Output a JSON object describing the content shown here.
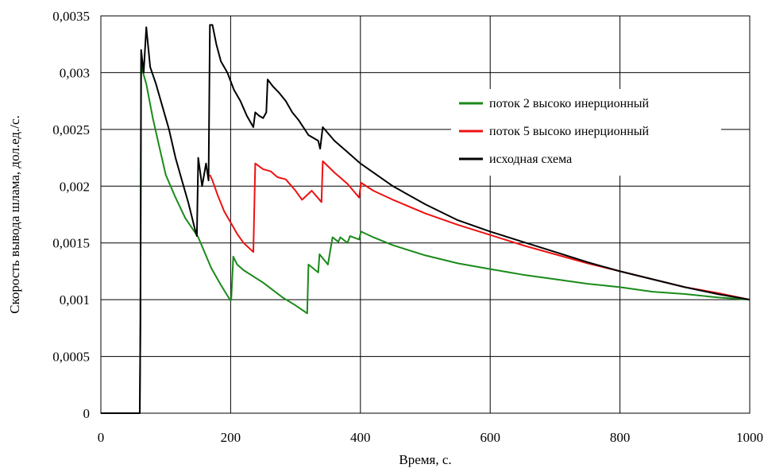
{
  "chart_data": {
    "type": "line",
    "title": "",
    "xlabel": "Время, с.",
    "ylabel": "Скорость вывода шлама, дол.ед./с.",
    "xlim": [
      0,
      1000
    ],
    "ylim": [
      0,
      0.0035
    ],
    "x_ticks": [
      0,
      200,
      400,
      600,
      800,
      1000
    ],
    "x_tick_labels": [
      "0",
      "200",
      "400",
      "600",
      "800",
      "1000"
    ],
    "y_ticks": [
      0,
      0.0005,
      0.001,
      0.0015,
      0.002,
      0.0025,
      0.003,
      0.0035
    ],
    "y_tick_labels": [
      "0",
      "0,0005",
      "0,001",
      "0,0015",
      "0,002",
      "0,0025",
      "0,003",
      "0,0035"
    ],
    "grid": true,
    "legend_position": "top-right",
    "series": [
      {
        "name": "поток 2 высоко инерционный",
        "color": "#1a8a1a",
        "points": [
          [
            0,
            0
          ],
          [
            60,
            0
          ],
          [
            61,
            0.0008
          ],
          [
            62,
            0.0031
          ],
          [
            65,
            0.003
          ],
          [
            70,
            0.0029
          ],
          [
            80,
            0.0026
          ],
          [
            90,
            0.00235
          ],
          [
            100,
            0.0021
          ],
          [
            115,
            0.0019
          ],
          [
            130,
            0.00172
          ],
          [
            150,
            0.00155
          ],
          [
            170,
            0.00128
          ],
          [
            185,
            0.00113
          ],
          [
            200,
            0.00099
          ],
          [
            201,
            0.00101
          ],
          [
            204,
            0.00138
          ],
          [
            210,
            0.00131
          ],
          [
            220,
            0.00126
          ],
          [
            250,
            0.00115
          ],
          [
            280,
            0.00102
          ],
          [
            300,
            0.00095
          ],
          [
            318,
            0.00088
          ],
          [
            320,
            0.00131
          ],
          [
            335,
            0.00124
          ],
          [
            337,
            0.0014
          ],
          [
            350,
            0.00131
          ],
          [
            357,
            0.00155
          ],
          [
            366,
            0.00151
          ],
          [
            369,
            0.00155
          ],
          [
            380,
            0.0015
          ],
          [
            384,
            0.00156
          ],
          [
            398,
            0.00153
          ],
          [
            401,
            0.0016
          ],
          [
            420,
            0.00155
          ],
          [
            450,
            0.00148
          ],
          [
            500,
            0.00139
          ],
          [
            550,
            0.00132
          ],
          [
            600,
            0.00127
          ],
          [
            650,
            0.00122
          ],
          [
            700,
            0.00118
          ],
          [
            750,
            0.00114
          ],
          [
            800,
            0.00111
          ],
          [
            850,
            0.00107
          ],
          [
            900,
            0.00105
          ],
          [
            950,
            0.00102
          ],
          [
            1000,
            0.001
          ]
        ]
      },
      {
        "name": "поток 5 высоко инерционный",
        "color": "#ee1111",
        "points": [
          [
            168,
            0.0021
          ],
          [
            172,
            0.00205
          ],
          [
            180,
            0.00192
          ],
          [
            190,
            0.00178
          ],
          [
            200,
            0.00168
          ],
          [
            210,
            0.00158
          ],
          [
            220,
            0.0015
          ],
          [
            235,
            0.00142
          ],
          [
            238,
            0.0022
          ],
          [
            250,
            0.00215
          ],
          [
            262,
            0.00213
          ],
          [
            272,
            0.00208
          ],
          [
            285,
            0.00206
          ],
          [
            300,
            0.00196
          ],
          [
            310,
            0.00188
          ],
          [
            325,
            0.00196
          ],
          [
            340,
            0.00186
          ],
          [
            342,
            0.00222
          ],
          [
            360,
            0.00212
          ],
          [
            380,
            0.00202
          ],
          [
            398,
            0.0019
          ],
          [
            401,
            0.00203
          ],
          [
            420,
            0.00196
          ],
          [
            450,
            0.00188
          ],
          [
            500,
            0.00176
          ],
          [
            550,
            0.00166
          ],
          [
            600,
            0.00157
          ],
          [
            650,
            0.00148
          ],
          [
            700,
            0.0014
          ],
          [
            750,
            0.00132
          ],
          [
            800,
            0.00125
          ],
          [
            850,
            0.00118
          ],
          [
            900,
            0.00111
          ],
          [
            950,
            0.00106
          ],
          [
            1000,
            0.001
          ]
        ]
      },
      {
        "name": "исходная схема",
        "color": "#000000",
        "points": [
          [
            0,
            0
          ],
          [
            60,
            0
          ],
          [
            61,
            0.0008
          ],
          [
            62,
            0.0032
          ],
          [
            66,
            0.003
          ],
          [
            70,
            0.0034
          ],
          [
            76,
            0.00305
          ],
          [
            85,
            0.0029
          ],
          [
            95,
            0.0027
          ],
          [
            105,
            0.0025
          ],
          [
            115,
            0.00225
          ],
          [
            125,
            0.00205
          ],
          [
            135,
            0.00185
          ],
          [
            145,
            0.00162
          ],
          [
            148,
            0.00156
          ],
          [
            150,
            0.00225
          ],
          [
            156,
            0.002
          ],
          [
            162,
            0.0022
          ],
          [
            166,
            0.00205
          ],
          [
            168,
            0.00342
          ],
          [
            172,
            0.00342
          ],
          [
            178,
            0.00325
          ],
          [
            185,
            0.0031
          ],
          [
            195,
            0.003
          ],
          [
            205,
            0.00285
          ],
          [
            215,
            0.00275
          ],
          [
            225,
            0.00262
          ],
          [
            235,
            0.00252
          ],
          [
            238,
            0.00265
          ],
          [
            244,
            0.00262
          ],
          [
            250,
            0.0026
          ],
          [
            255,
            0.00265
          ],
          [
            257,
            0.00294
          ],
          [
            265,
            0.00288
          ],
          [
            275,
            0.00282
          ],
          [
            285,
            0.00275
          ],
          [
            295,
            0.00265
          ],
          [
            305,
            0.00258
          ],
          [
            320,
            0.00245
          ],
          [
            335,
            0.0024
          ],
          [
            338,
            0.00233
          ],
          [
            342,
            0.00252
          ],
          [
            360,
            0.0024
          ],
          [
            380,
            0.0023
          ],
          [
            400,
            0.0022
          ],
          [
            450,
            0.002
          ],
          [
            500,
            0.00184
          ],
          [
            550,
            0.0017
          ],
          [
            600,
            0.0016
          ],
          [
            650,
            0.00151
          ],
          [
            700,
            0.00142
          ],
          [
            750,
            0.00133
          ],
          [
            800,
            0.00125
          ],
          [
            850,
            0.00118
          ],
          [
            900,
            0.00111
          ],
          [
            950,
            0.00105
          ],
          [
            1000,
            0.001
          ]
        ]
      }
    ]
  }
}
